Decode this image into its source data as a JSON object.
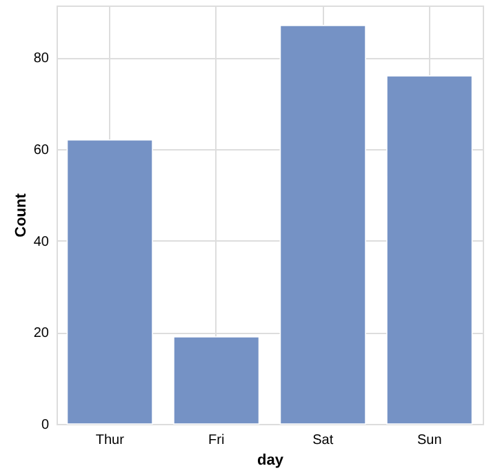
{
  "chart_data": {
    "type": "bar",
    "xlabel": "day",
    "ylabel": "Count",
    "categories": [
      "Thur",
      "Fri",
      "Sat",
      "Sun"
    ],
    "values": [
      62,
      19,
      87,
      76
    ],
    "color": "#7592c5",
    "ylim": [
      0,
      91.35
    ],
    "yticks": [
      0,
      20,
      40,
      60,
      80
    ],
    "grid": true
  }
}
